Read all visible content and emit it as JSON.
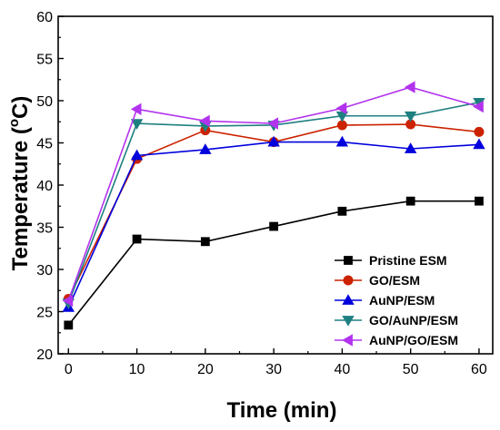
{
  "chart_data": {
    "type": "line",
    "x": [
      0,
      10,
      20,
      30,
      40,
      50,
      60
    ],
    "xlabel": "Time (min)",
    "ylabel_prefix": "Temperature (",
    "ylabel_sup": "o",
    "ylabel_suffix": "C)",
    "xlim": [
      -1.5,
      62
    ],
    "ylim": [
      20,
      60
    ],
    "xticks": [
      0,
      10,
      20,
      30,
      40,
      50,
      60
    ],
    "yticks": [
      20,
      25,
      30,
      35,
      40,
      45,
      50,
      55,
      60
    ],
    "grid": false,
    "legend_position": "bottom-right",
    "series": [
      {
        "name": "Pristine ESM",
        "color": "#000000",
        "marker": "square",
        "values": [
          23.4,
          33.6,
          33.3,
          35.1,
          36.9,
          38.1,
          38.1
        ]
      },
      {
        "name": "GO/ESM",
        "color": "#cc2200",
        "marker": "circle",
        "values": [
          26.5,
          43.1,
          46.5,
          45.1,
          47.1,
          47.2,
          46.3
        ]
      },
      {
        "name": "AuNP/ESM",
        "color": "#0000dd",
        "marker": "triangle-up",
        "values": [
          25.5,
          43.5,
          44.2,
          45.1,
          45.1,
          44.3,
          44.8
        ]
      },
      {
        "name": "GO/AuNP/ESM",
        "color": "#1e7f80",
        "marker": "triangle-down",
        "values": [
          26.0,
          47.3,
          47.0,
          47.1,
          48.2,
          48.2,
          49.8
        ]
      },
      {
        "name": "AuNP/GO/ESM",
        "color": "#b233ee",
        "marker": "triangle-left",
        "values": [
          26.3,
          49.0,
          47.6,
          47.3,
          49.1,
          51.6,
          49.3
        ]
      }
    ]
  }
}
